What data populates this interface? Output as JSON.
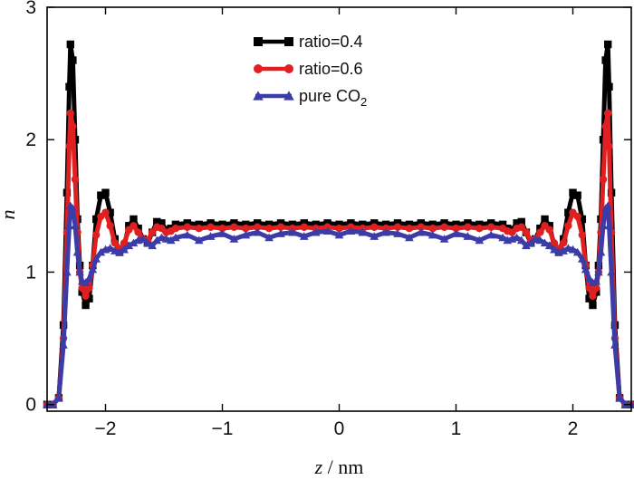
{
  "chart_data": {
    "type": "line",
    "title": "",
    "xlabel_var": "z",
    "xlabel_unit": " / nm",
    "ylabel": "n",
    "xlim": [
      -2.5,
      2.5
    ],
    "ylim": [
      -0.05,
      3.0
    ],
    "xticks": [
      -2,
      -1,
      0,
      1,
      2
    ],
    "xtick_labels": [
      "−2",
      "−1",
      "0",
      "1",
      "2"
    ],
    "yticks": [
      0,
      1,
      2,
      3
    ],
    "ytick_labels": [
      "0",
      "1",
      "2",
      "3"
    ],
    "grid": false,
    "legend_position": "top-center",
    "series": [
      {
        "name": "ratio=0.4",
        "label_main": "ratio=0.4",
        "label_sub": "",
        "color": "#000000",
        "marker": "square",
        "x": [
          -2.5,
          -2.45,
          -2.4,
          -2.36,
          -2.33,
          -2.31,
          -2.3,
          -2.28,
          -2.26,
          -2.24,
          -2.22,
          -2.2,
          -2.17,
          -2.14,
          -2.11,
          -2.08,
          -2.04,
          -2.0,
          -1.96,
          -1.92,
          -1.88,
          -1.84,
          -1.8,
          -1.76,
          -1.72,
          -1.68,
          -1.64,
          -1.6,
          -1.56,
          -1.52,
          -1.48,
          -1.44,
          -1.4,
          -1.3,
          -1.2,
          -1.1,
          -1.0,
          -0.9,
          -0.8,
          -0.7,
          -0.6,
          -0.5,
          -0.4,
          -0.3,
          -0.2,
          -0.1,
          0.0,
          0.1,
          0.2,
          0.3,
          0.4,
          0.5,
          0.6,
          0.7,
          0.8,
          0.9,
          1.0,
          1.1,
          1.2,
          1.3,
          1.4,
          1.44,
          1.48,
          1.52,
          1.56,
          1.6,
          1.64,
          1.68,
          1.72,
          1.76,
          1.8,
          1.84,
          1.88,
          1.92,
          1.96,
          2.0,
          2.04,
          2.08,
          2.11,
          2.14,
          2.17,
          2.2,
          2.22,
          2.24,
          2.26,
          2.28,
          2.3,
          2.31,
          2.33,
          2.36,
          2.4,
          2.45,
          2.5
        ],
        "y": [
          0.0,
          0.0,
          0.05,
          0.6,
          1.6,
          2.4,
          2.72,
          2.6,
          2.0,
          1.4,
          1.05,
          0.85,
          0.75,
          0.8,
          1.05,
          1.4,
          1.58,
          1.6,
          1.45,
          1.25,
          1.15,
          1.2,
          1.35,
          1.4,
          1.33,
          1.25,
          1.22,
          1.3,
          1.38,
          1.37,
          1.32,
          1.33,
          1.36,
          1.37,
          1.36,
          1.37,
          1.36,
          1.37,
          1.36,
          1.37,
          1.36,
          1.37,
          1.36,
          1.37,
          1.36,
          1.37,
          1.36,
          1.37,
          1.36,
          1.37,
          1.36,
          1.37,
          1.36,
          1.37,
          1.36,
          1.37,
          1.36,
          1.37,
          1.36,
          1.37,
          1.36,
          1.33,
          1.32,
          1.37,
          1.38,
          1.3,
          1.22,
          1.25,
          1.33,
          1.4,
          1.35,
          1.2,
          1.15,
          1.25,
          1.45,
          1.6,
          1.58,
          1.4,
          1.05,
          0.8,
          0.75,
          0.85,
          1.05,
          1.4,
          2.0,
          2.6,
          2.72,
          2.4,
          1.6,
          0.6,
          0.05,
          0.0,
          0.0
        ]
      },
      {
        "name": "ratio=0.6",
        "label_main": "ratio=0.6",
        "label_sub": "",
        "color": "#e02020",
        "marker": "circle",
        "x": [
          -2.5,
          -2.45,
          -2.4,
          -2.36,
          -2.33,
          -2.31,
          -2.3,
          -2.28,
          -2.26,
          -2.24,
          -2.22,
          -2.2,
          -2.17,
          -2.14,
          -2.11,
          -2.08,
          -2.04,
          -2.0,
          -1.96,
          -1.92,
          -1.88,
          -1.84,
          -1.8,
          -1.76,
          -1.72,
          -1.68,
          -1.64,
          -1.6,
          -1.56,
          -1.52,
          -1.48,
          -1.44,
          -1.4,
          -1.3,
          -1.2,
          -1.1,
          -1.0,
          -0.9,
          -0.8,
          -0.7,
          -0.6,
          -0.5,
          -0.4,
          -0.3,
          -0.2,
          -0.1,
          0.0,
          0.1,
          0.2,
          0.3,
          0.4,
          0.5,
          0.6,
          0.7,
          0.8,
          0.9,
          1.0,
          1.1,
          1.2,
          1.3,
          1.4,
          1.44,
          1.48,
          1.52,
          1.56,
          1.6,
          1.64,
          1.68,
          1.72,
          1.76,
          1.8,
          1.84,
          1.88,
          1.92,
          1.96,
          2.0,
          2.04,
          2.08,
          2.11,
          2.14,
          2.17,
          2.2,
          2.22,
          2.24,
          2.26,
          2.28,
          2.3,
          2.31,
          2.33,
          2.36,
          2.4,
          2.45,
          2.5
        ],
        "y": [
          0.0,
          0.0,
          0.05,
          0.5,
          1.3,
          1.95,
          2.2,
          2.1,
          1.7,
          1.3,
          1.0,
          0.88,
          0.82,
          0.88,
          1.05,
          1.28,
          1.42,
          1.45,
          1.35,
          1.22,
          1.17,
          1.22,
          1.32,
          1.35,
          1.3,
          1.25,
          1.24,
          1.3,
          1.34,
          1.33,
          1.3,
          1.31,
          1.33,
          1.34,
          1.33,
          1.34,
          1.33,
          1.34,
          1.33,
          1.34,
          1.33,
          1.34,
          1.33,
          1.34,
          1.33,
          1.34,
          1.33,
          1.34,
          1.33,
          1.34,
          1.33,
          1.34,
          1.33,
          1.34,
          1.33,
          1.34,
          1.33,
          1.34,
          1.33,
          1.34,
          1.33,
          1.31,
          1.3,
          1.33,
          1.34,
          1.3,
          1.24,
          1.25,
          1.3,
          1.35,
          1.32,
          1.22,
          1.17,
          1.22,
          1.35,
          1.45,
          1.42,
          1.28,
          1.05,
          0.88,
          0.82,
          0.88,
          1.0,
          1.3,
          1.7,
          2.1,
          2.2,
          1.95,
          1.3,
          0.5,
          0.05,
          0.0,
          0.0
        ]
      },
      {
        "name": "pure CO2",
        "label_main": "pure CO",
        "label_sub": "2",
        "color": "#3c3ca8",
        "marker": "triangle",
        "x": [
          -2.5,
          -2.45,
          -2.4,
          -2.36,
          -2.33,
          -2.31,
          -2.3,
          -2.28,
          -2.26,
          -2.24,
          -2.22,
          -2.2,
          -2.17,
          -2.14,
          -2.11,
          -2.08,
          -2.04,
          -2.0,
          -1.96,
          -1.92,
          -1.88,
          -1.84,
          -1.8,
          -1.76,
          -1.72,
          -1.68,
          -1.64,
          -1.6,
          -1.56,
          -1.52,
          -1.48,
          -1.44,
          -1.4,
          -1.3,
          -1.2,
          -1.1,
          -1.0,
          -0.9,
          -0.8,
          -0.7,
          -0.6,
          -0.5,
          -0.4,
          -0.3,
          -0.2,
          -0.1,
          0.0,
          0.1,
          0.2,
          0.3,
          0.4,
          0.5,
          0.6,
          0.7,
          0.8,
          0.9,
          1.0,
          1.1,
          1.2,
          1.3,
          1.4,
          1.44,
          1.48,
          1.52,
          1.56,
          1.6,
          1.64,
          1.68,
          1.72,
          1.76,
          1.8,
          1.84,
          1.88,
          1.92,
          1.96,
          2.0,
          2.04,
          2.08,
          2.11,
          2.14,
          2.17,
          2.2,
          2.22,
          2.24,
          2.26,
          2.28,
          2.3,
          2.31,
          2.33,
          2.36,
          2.4,
          2.45,
          2.5
        ],
        "y": [
          0.0,
          0.0,
          0.05,
          0.45,
          1.0,
          1.35,
          1.5,
          1.48,
          1.35,
          1.15,
          1.0,
          0.93,
          0.92,
          0.95,
          1.02,
          1.1,
          1.15,
          1.17,
          1.18,
          1.16,
          1.15,
          1.17,
          1.2,
          1.22,
          1.24,
          1.25,
          1.22,
          1.2,
          1.24,
          1.26,
          1.25,
          1.24,
          1.26,
          1.28,
          1.24,
          1.27,
          1.29,
          1.25,
          1.28,
          1.3,
          1.26,
          1.29,
          1.3,
          1.27,
          1.3,
          1.31,
          1.28,
          1.31,
          1.3,
          1.27,
          1.3,
          1.29,
          1.26,
          1.3,
          1.28,
          1.25,
          1.29,
          1.27,
          1.24,
          1.28,
          1.26,
          1.24,
          1.25,
          1.26,
          1.24,
          1.2,
          1.22,
          1.25,
          1.24,
          1.22,
          1.2,
          1.17,
          1.15,
          1.16,
          1.18,
          1.17,
          1.15,
          1.1,
          1.02,
          0.95,
          0.92,
          0.93,
          1.0,
          1.15,
          1.35,
          1.48,
          1.5,
          1.35,
          1.0,
          0.45,
          0.05,
          0.0,
          0.0
        ]
      }
    ]
  }
}
